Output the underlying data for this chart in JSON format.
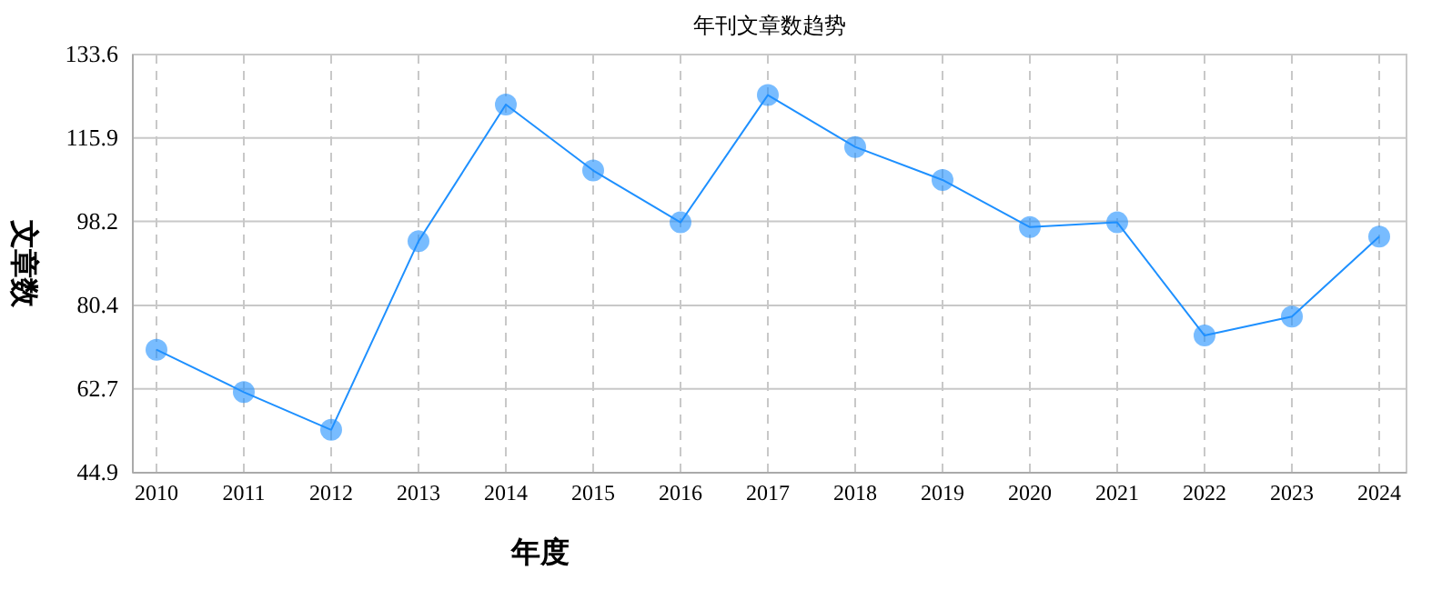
{
  "chart_data": {
    "type": "line",
    "title": "年刊文章数趋势",
    "xlabel": "年度",
    "ylabel": "文章数",
    "categories": [
      "2010",
      "2011",
      "2012",
      "2013",
      "2014",
      "2015",
      "2016",
      "2017",
      "2018",
      "2019",
      "2020",
      "2021",
      "2022",
      "2023",
      "2024"
    ],
    "series": [
      {
        "color": "#1e90ff",
        "values": [
          71,
          62,
          54,
          94,
          123,
          109,
          98,
          125,
          114,
          107,
          97,
          98,
          74,
          78,
          95
        ]
      }
    ],
    "ylim": [
      44.9,
      133.6
    ],
    "yticks": [
      44.9,
      62.7,
      80.4,
      98.2,
      115.9,
      133.6
    ],
    "grid": true,
    "marker": "circle",
    "line_style": "solid"
  }
}
